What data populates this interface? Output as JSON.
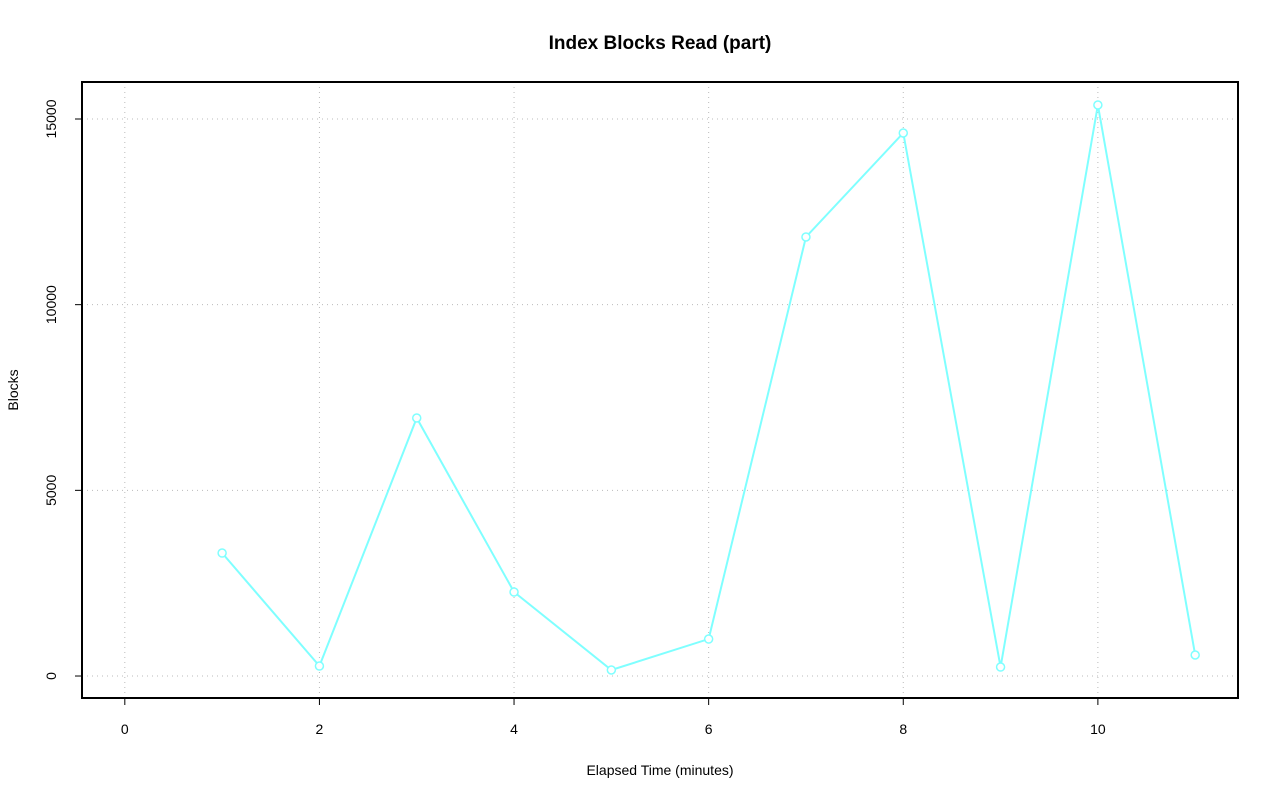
{
  "chart_data": {
    "type": "line",
    "title": "Index Blocks Read (part)",
    "x_label": "Elapsed Time (minutes)",
    "y_label": "Blocks",
    "x": [
      1,
      2,
      3,
      4,
      5,
      6,
      7,
      8,
      9,
      10,
      11
    ],
    "series": [
      {
        "color": "#7fffff",
        "values": [
          3312,
          269,
          6948,
          2262,
          162,
          996,
          11822,
          14623,
          242,
          15377,
          566
        ]
      }
    ],
    "xlim": [
      -0.44,
      11.44
    ],
    "xticks": [
      0,
      2,
      4,
      6,
      8,
      10
    ],
    "ylim": [
      -592,
      15996
    ],
    "yticks": [
      0,
      5000,
      10000,
      15000
    ],
    "grid": true
  }
}
